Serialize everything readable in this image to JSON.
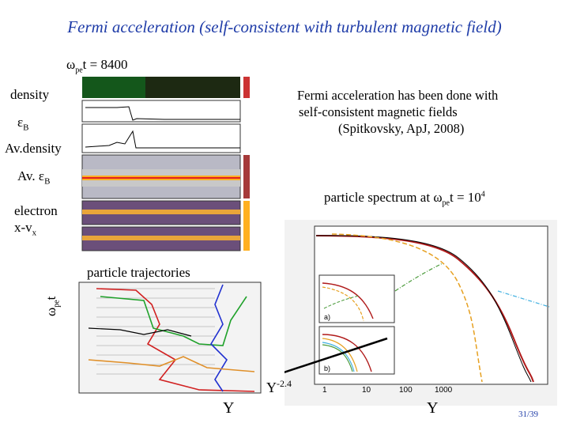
{
  "slide": {
    "title": "Fermi acceleration (self-consistent with turbulent magnetic field)",
    "omega_time": {
      "symbol": "ω",
      "sub": "pe",
      "rest": "t = 8400"
    },
    "labels": {
      "density": "density",
      "eps_b": {
        "symbol": "ε",
        "sub": "B"
      },
      "av_density": "Av.density",
      "av_eps_b": {
        "prefix": "Av. ",
        "symbol": "ε",
        "sub": "B"
      },
      "electron": "electron",
      "x_vx": {
        "main": "x-v",
        "sub": "x"
      },
      "trajectories": "particle trajectories",
      "y_axis": {
        "symbol": "ω",
        "sub": "pe",
        "rest": "t"
      }
    },
    "fermi_note": {
      "line1": "Fermi acceleration has been done with",
      "line2": "self-consistent magnetic fields",
      "line3": "(Spitkovsky, ApJ, 2008)"
    },
    "spectrum_caption": {
      "prefix": "particle spectrum at ",
      "symbol": "ω",
      "sub": "pe",
      "mid": "t = 10",
      "sup": "4"
    },
    "gamma_labels": {
      "left": "Υ",
      "mid": "Υ",
      "mid_exp": "-2.4",
      "right": "Υ"
    },
    "page_number": "31/39",
    "inset_labels": {
      "a": "a)",
      "b": "b)"
    },
    "spectrum_ticks": {
      "x": [
        "1",
        "10",
        "100",
        "1000"
      ]
    },
    "colors": {
      "title": "#1f3ca8",
      "curve": "#b01a1a"
    }
  }
}
